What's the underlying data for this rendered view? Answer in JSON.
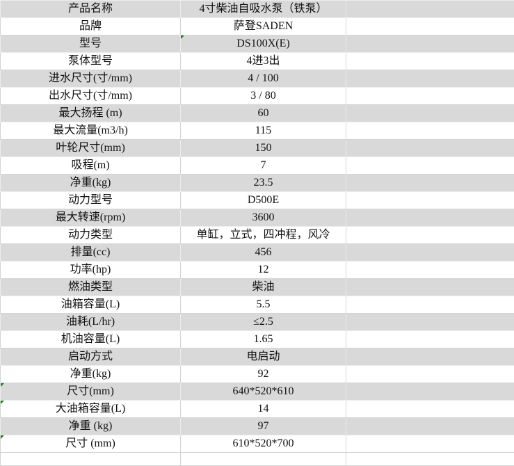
{
  "rows": [
    {
      "label": "产品名称",
      "value": "4寸柴油自吸水泵（铁泵）"
    },
    {
      "label": "品牌",
      "value": "萨登SADEN"
    },
    {
      "label": "型号",
      "value": "DS100X(E)"
    },
    {
      "label": "泵体型号",
      "value": "4进3出"
    },
    {
      "label": "进水尺寸(寸/mm)",
      "value": "4 / 100"
    },
    {
      "label": "出水尺寸(寸/mm)",
      "value": "3 / 80"
    },
    {
      "label": "最大扬程 (m)",
      "value": "60"
    },
    {
      "label": "最大流量(m3/h)",
      "value": "115"
    },
    {
      "label": "叶轮尺寸(mm)",
      "value": "150"
    },
    {
      "label": "吸程(m)",
      "value": "7"
    },
    {
      "label": "净重(kg)",
      "value": "23.5"
    },
    {
      "label": "动力型号",
      "value": "D500E"
    },
    {
      "label": "最大转速(rpm)",
      "value": "3600"
    },
    {
      "label": "动力类型",
      "value": "单缸，立式，四冲程，风冷"
    },
    {
      "label": "排量(cc)",
      "value": "456"
    },
    {
      "label": "功率(hp)",
      "value": "12"
    },
    {
      "label": "燃油类型",
      "value": "柴油"
    },
    {
      "label": "油箱容量(L)",
      "value": "5.5"
    },
    {
      "label": "油耗(L/hr)",
      "value": "≤2.5"
    },
    {
      "label": "机油容量(L)",
      "value": "1.65"
    },
    {
      "label": "启动方式",
      "value": "电启动"
    },
    {
      "label": "净重(kg)",
      "value": "92"
    },
    {
      "label": "尺寸(mm)",
      "value": "640*520*610"
    },
    {
      "label": "大油箱容量(L)",
      "value": "14"
    },
    {
      "label": "净重 (kg)",
      "value": "97"
    },
    {
      "label": "尺寸 (mm)",
      "value": "610*520*700"
    }
  ],
  "colors": {
    "gray_row": "#d9d9d9",
    "comment_marker": "#1e7b1e"
  }
}
